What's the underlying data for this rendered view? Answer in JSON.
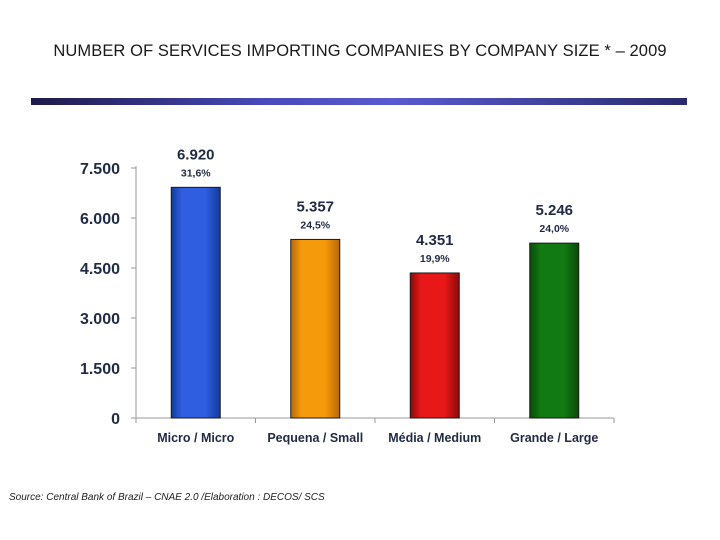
{
  "page": {
    "title": "NUMBER OF SERVICES IMPORTING COMPANIES BY COMPANY SIZE * – 2009",
    "source": "Source: Central Bank of Brazil – CNAE 2.0 /Elaboration : DECOS/ SCS"
  },
  "chart_data": {
    "type": "bar",
    "title": "NUMBER OF SERVICES IMPORTING COMPANIES BY COMPANY SIZE * – 2009",
    "xlabel": "",
    "ylabel": "",
    "ylim": [
      0,
      7500
    ],
    "yticks": [
      0,
      1500,
      3000,
      4500,
      6000,
      7500
    ],
    "ytick_labels": [
      "0",
      "1.500",
      "3.000",
      "4.500",
      "6.000",
      "7.500"
    ],
    "categories": [
      "Micro / Micro",
      "Pequena / Small",
      "Média / Medium",
      "Grande / Large"
    ],
    "values": [
      6920,
      5357,
      4351,
      5246
    ],
    "value_labels": [
      "6.920",
      "5.357",
      "4.351",
      "5.246"
    ],
    "percent_labels": [
      "31,6%",
      "24,5%",
      "19,9%",
      "24,0%"
    ],
    "colors": [
      "#2f5fe0",
      "#f59a0a",
      "#e81818",
      "#127a12"
    ],
    "dark_colors": [
      "#123a9a",
      "#b8680a",
      "#8a0a0a",
      "#0a4a0a"
    ],
    "grid": false,
    "legend": "none"
  }
}
